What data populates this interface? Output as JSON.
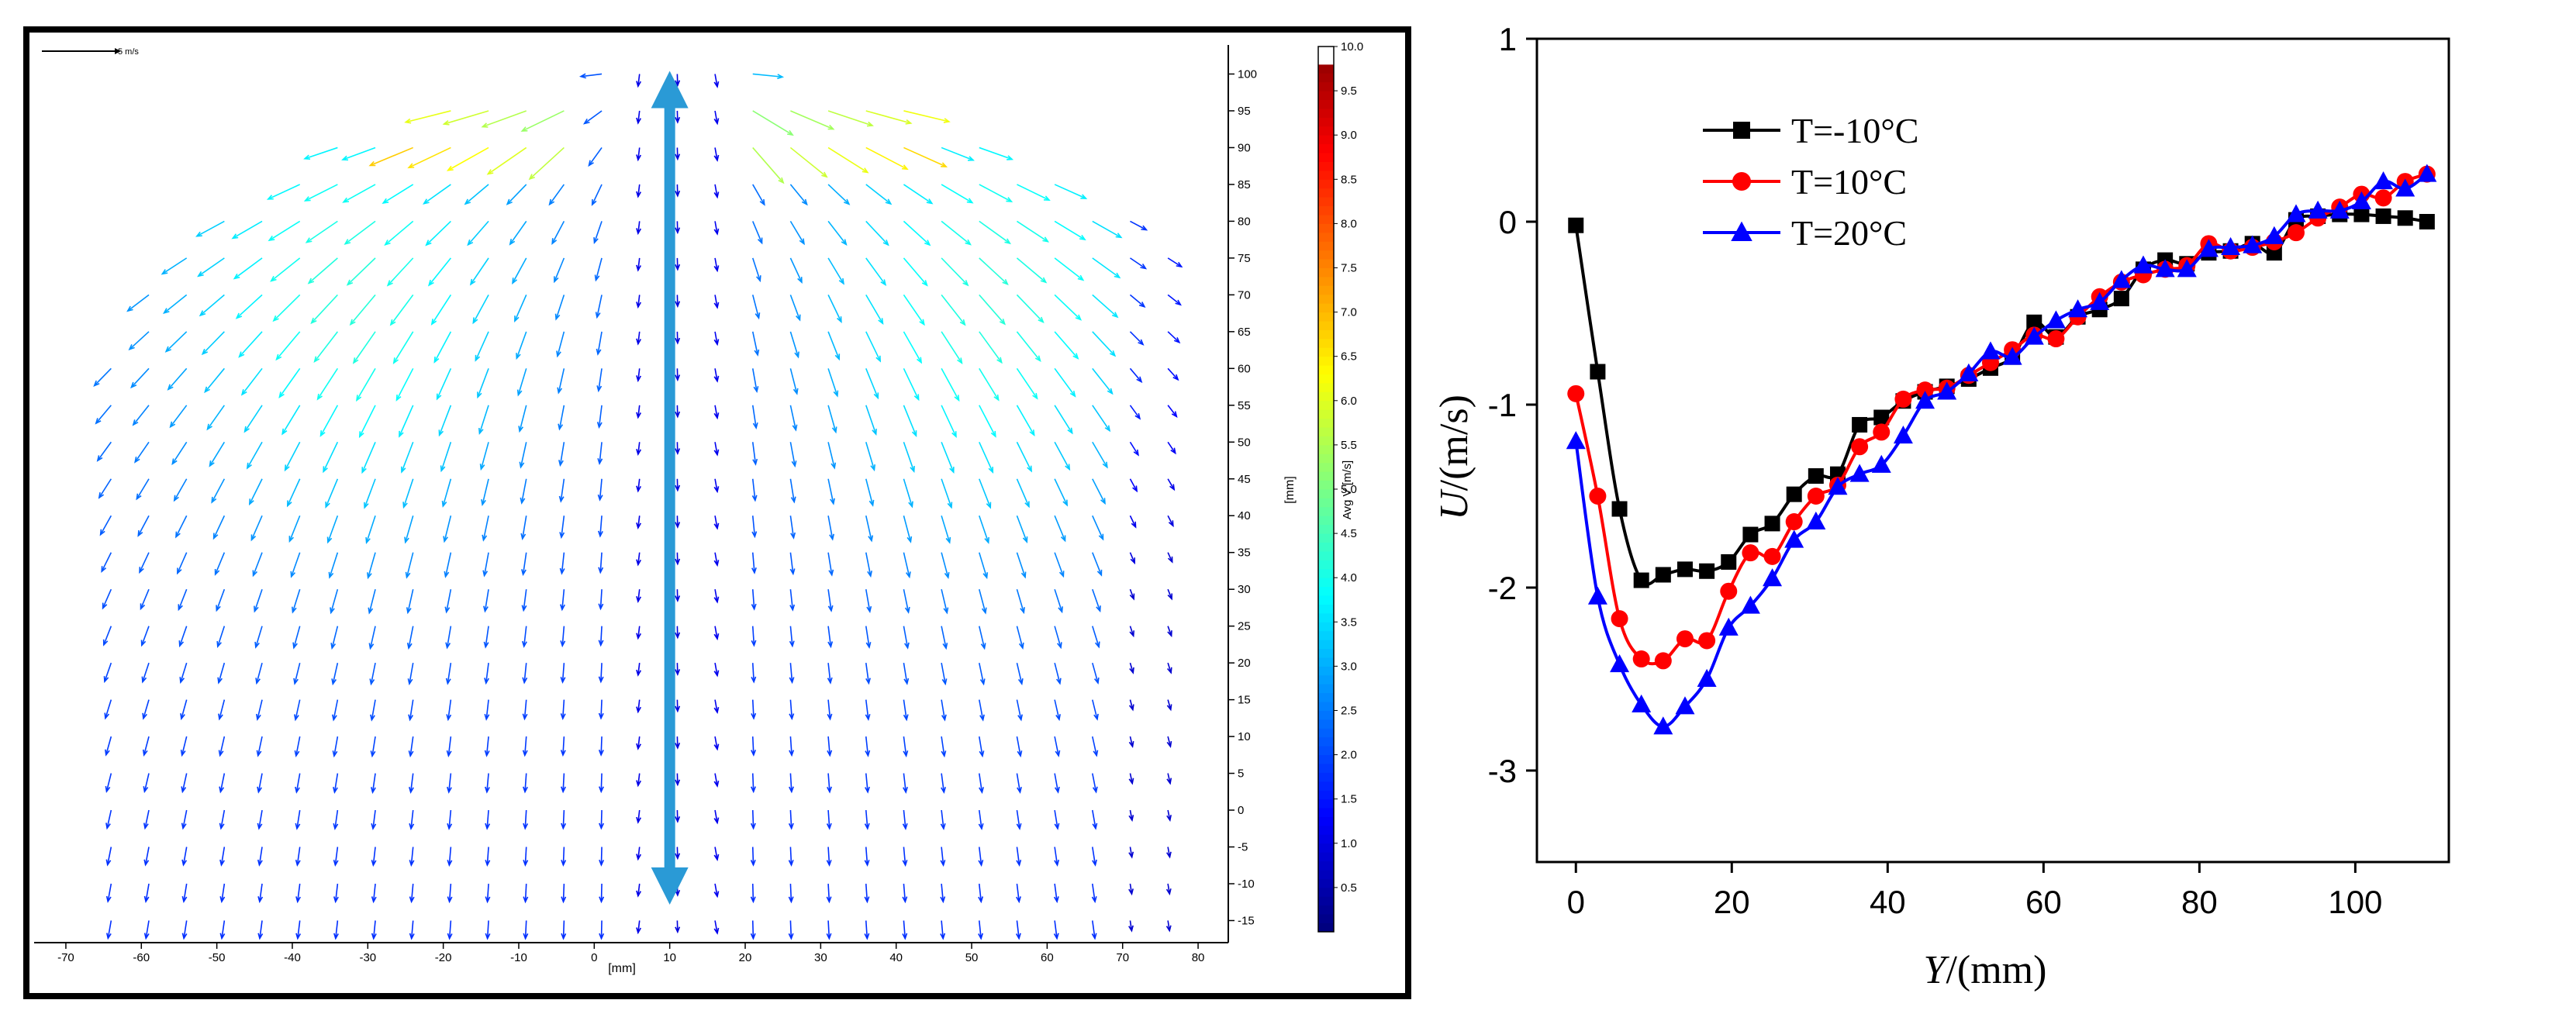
{
  "chart_data": [
    {
      "type": "vector-field",
      "title": "",
      "reference_vector_label": "5 m/s",
      "xlabel": "[mm]",
      "ylabel": "[mm]",
      "xlim": [
        -74,
        84
      ],
      "ylim": [
        -18,
        105
      ],
      "x_ticks": [
        -70,
        -60,
        -50,
        -40,
        -30,
        -20,
        -10,
        0,
        10,
        20,
        30,
        40,
        50,
        60,
        70,
        80
      ],
      "y_ticks": [
        100,
        95,
        90,
        85,
        80,
        75,
        70,
        65,
        60,
        55,
        50,
        45,
        40,
        35,
        30,
        25,
        20,
        15,
        10,
        5,
        0,
        -5,
        -10,
        -15
      ],
      "colorbar": {
        "label": "Avg V [m/s]",
        "min": 0,
        "max": 10,
        "ticks": [
          "10.0",
          "9.5",
          "9.0",
          "8.5",
          "8.0",
          "7.5",
          "7.0",
          "6.5",
          "6.0",
          "5.5",
          "5.0",
          "4.5",
          "4.0",
          "3.5",
          "3.0",
          "2.5",
          "2.0",
          "1.5",
          "1.0",
          "0.5"
        ]
      },
      "jet_center_x": 10,
      "jet_source_y": 101,
      "annotation": "double-headed arrow along jet axis from y=100 to y=-12 at x=10"
    },
    {
      "type": "line",
      "title": "",
      "xlabel_italic": "Y",
      "xlabel_rest": "/(mm)",
      "ylabel_italic": "U",
      "ylabel_rest": "/(m/s)",
      "xlim": [
        -5,
        112
      ],
      "ylim": [
        -3.5,
        1
      ],
      "x_ticks": [
        0,
        20,
        40,
        60,
        80,
        100
      ],
      "y_ticks": [
        1,
        0,
        -1,
        -2,
        -3
      ],
      "legend_position": "top-left",
      "series": [
        {
          "name": "T=-10°C",
          "color": "#000000",
          "marker": "square",
          "x": [
            0,
            2.8,
            5.6,
            8.4,
            11.2,
            14,
            16.8,
            19.6,
            22.4,
            25.2,
            28,
            30.8,
            33.6,
            36.4,
            39.2,
            42,
            44.8,
            47.6,
            50.4,
            53.2,
            56,
            58.8,
            61.6,
            64.4,
            67.2,
            70,
            72.8,
            75.6,
            78.4,
            81.2,
            84,
            86.8,
            89.6,
            92.4,
            95.2,
            98,
            100.8,
            103.6,
            106.4,
            109.2
          ],
          "y": [
            -0.02,
            -0.82,
            -1.57,
            -1.96,
            -1.93,
            -1.9,
            -1.91,
            -1.86,
            -1.71,
            -1.65,
            -1.49,
            -1.39,
            -1.38,
            -1.11,
            -1.07,
            -0.98,
            -0.93,
            -0.9,
            -0.86,
            -0.8,
            -0.74,
            -0.55,
            -0.63,
            -0.52,
            -0.48,
            -0.42,
            -0.26,
            -0.21,
            -0.23,
            -0.17,
            -0.16,
            -0.12,
            -0.17,
            0.01,
            0.03,
            0.04,
            0.04,
            0.03,
            0.02,
            0.0
          ]
        },
        {
          "name": "T=10°C",
          "color": "#ff0000",
          "marker": "circle",
          "x": [
            0,
            2.8,
            5.6,
            8.4,
            11.2,
            14,
            16.8,
            19.6,
            22.4,
            25.2,
            28,
            30.8,
            33.6,
            36.4,
            39.2,
            42,
            44.8,
            47.6,
            50.4,
            53.2,
            56,
            58.8,
            61.6,
            64.4,
            67.2,
            70,
            72.8,
            75.6,
            78.4,
            81.2,
            84,
            86.8,
            89.6,
            92.4,
            95.2,
            98,
            100.8,
            103.6,
            106.4,
            109.2
          ],
          "y": [
            -0.94,
            -1.5,
            -2.17,
            -2.39,
            -2.4,
            -2.28,
            -2.29,
            -2.02,
            -1.81,
            -1.83,
            -1.64,
            -1.5,
            -1.44,
            -1.23,
            -1.15,
            -0.97,
            -0.92,
            -0.91,
            -0.84,
            -0.77,
            -0.7,
            -0.62,
            -0.64,
            -0.52,
            -0.41,
            -0.33,
            -0.29,
            -0.26,
            -0.24,
            -0.12,
            -0.16,
            -0.14,
            -0.11,
            -0.06,
            0.02,
            0.08,
            0.15,
            0.13,
            0.22,
            0.26
          ]
        },
        {
          "name": "T=20°C",
          "color": "#0000ff",
          "marker": "triangle",
          "x": [
            0,
            2.8,
            5.6,
            8.4,
            11.2,
            14,
            16.8,
            19.6,
            22.4,
            25.2,
            28,
            30.8,
            33.6,
            36.4,
            39.2,
            42,
            44.8,
            47.6,
            50.4,
            53.2,
            56,
            58.8,
            61.6,
            64.4,
            67.2,
            70,
            72.8,
            75.6,
            78.4,
            81.2,
            84,
            86.8,
            89.6,
            92.4,
            95.2,
            98,
            100.8,
            103.6,
            106.4,
            109.2
          ],
          "y": [
            -1.2,
            -2.05,
            -2.42,
            -2.64,
            -2.76,
            -2.65,
            -2.5,
            -2.22,
            -2.1,
            -1.95,
            -1.74,
            -1.64,
            -1.45,
            -1.38,
            -1.33,
            -1.17,
            -0.98,
            -0.93,
            -0.83,
            -0.71,
            -0.74,
            -0.63,
            -0.54,
            -0.48,
            -0.44,
            -0.32,
            -0.24,
            -0.26,
            -0.26,
            -0.15,
            -0.14,
            -0.13,
            -0.08,
            0.04,
            0.06,
            0.06,
            0.11,
            0.22,
            0.18,
            0.26
          ]
        }
      ]
    }
  ]
}
